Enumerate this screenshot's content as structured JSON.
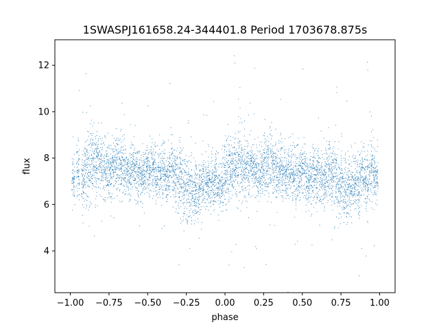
{
  "chart_data": {
    "type": "scatter",
    "title": "1SWASPJ161658.24-344401.8 Period 1703678.875s",
    "xlabel": "phase",
    "ylabel": "flux",
    "xlim": [
      -1.1,
      1.1
    ],
    "ylim": [
      2.2,
      13.1
    ],
    "xticks": [
      -1.0,
      -0.75,
      -0.5,
      -0.25,
      0.0,
      0.25,
      0.5,
      0.75,
      1.0
    ],
    "xtick_labels": [
      "−1.00",
      "−0.75",
      "−0.50",
      "−0.25",
      "0.00",
      "0.25",
      "0.50",
      "0.75",
      "1.00"
    ],
    "yticks": [
      4,
      6,
      8,
      10,
      12
    ],
    "ytick_labels": [
      "4",
      "6",
      "8",
      "10",
      "12"
    ],
    "grid": false,
    "legend": "none",
    "marker_color": "#1f77b4",
    "series": [
      {
        "x": [
          -0.98,
          -0.95,
          -0.92,
          -0.9,
          -0.88,
          -0.86,
          -0.84,
          -0.82,
          -0.8,
          -0.78,
          -0.76,
          -0.74,
          -0.72,
          -0.7,
          -0.68,
          -0.66,
          -0.64,
          -0.62,
          -0.6,
          -0.58,
          -0.56,
          -0.54,
          -0.52,
          -0.5,
          -0.48,
          -0.46,
          -0.44,
          -0.42,
          -0.4,
          -0.38,
          -0.36,
          -0.34,
          -0.32,
          -0.3,
          -0.28,
          -0.26,
          -0.24,
          -0.22,
          -0.2,
          -0.18,
          -0.16,
          -0.14,
          -0.12,
          -0.1,
          -0.08,
          -0.06,
          -0.04,
          -0.02,
          0.0,
          0.02,
          0.04,
          0.06,
          0.08,
          0.1,
          0.12,
          0.14,
          0.16,
          0.18,
          0.2,
          0.22,
          0.24,
          0.26,
          0.28,
          0.3,
          0.32,
          0.34,
          0.36,
          0.38,
          0.4,
          0.42,
          0.44,
          0.46,
          0.48,
          0.5,
          0.52,
          0.54,
          0.56,
          0.58,
          0.6,
          0.62,
          0.64,
          0.66,
          0.68,
          0.7,
          0.72,
          0.74,
          0.76,
          0.78,
          0.8,
          0.82,
          0.84,
          0.86,
          0.88,
          0.9,
          0.92,
          0.94,
          0.96,
          0.98
        ],
        "y": [
          7.2,
          7.4,
          7.0,
          7.5,
          7.6,
          7.8,
          7.7,
          7.9,
          7.6,
          7.4,
          7.5,
          7.3,
          7.6,
          7.8,
          7.7,
          7.5,
          7.4,
          7.3,
          7.6,
          7.5,
          7.4,
          7.2,
          7.3,
          7.5,
          7.4,
          7.6,
          7.2,
          7.3,
          7.4,
          7.1,
          7.3,
          7.5,
          7.2,
          7.0,
          7.1,
          6.9,
          6.7,
          6.8,
          6.5,
          6.6,
          6.7,
          6.8,
          7.0,
          6.9,
          7.1,
          7.0,
          6.8,
          6.9,
          7.3,
          7.5,
          7.4,
          7.6,
          7.7,
          7.8,
          7.6,
          7.5,
          7.7,
          7.6,
          7.4,
          7.3,
          7.5,
          7.7,
          7.6,
          7.8,
          7.7,
          7.5,
          7.6,
          7.4,
          7.3,
          7.5,
          7.2,
          7.1,
          7.3,
          7.4,
          7.2,
          7.0,
          7.1,
          7.3,
          7.4,
          7.2,
          7.1,
          7.3,
          7.5,
          7.2,
          7.0,
          6.8,
          6.9,
          6.7,
          6.6,
          6.9,
          7.0,
          6.8,
          7.1,
          7.2,
          7.0,
          7.3,
          7.4,
          7.2
        ],
        "spread": [
          1.4,
          1.5,
          1.6,
          1.7,
          2.0,
          1.9,
          1.6,
          1.7,
          1.8,
          1.6,
          1.5,
          1.4,
          1.6,
          1.8,
          1.7,
          1.6,
          1.5,
          1.4,
          1.5,
          1.5,
          1.4,
          1.3,
          1.4,
          1.5,
          1.5,
          1.6,
          1.4,
          1.3,
          1.3,
          1.4,
          1.5,
          1.6,
          1.7,
          1.9,
          1.8,
          1.9,
          2.0,
          1.8,
          1.7,
          1.6,
          1.5,
          1.6,
          1.4,
          1.5,
          1.6,
          1.5,
          1.4,
          1.5,
          1.8,
          1.7,
          1.6,
          1.5,
          1.7,
          1.8,
          1.9,
          1.7,
          1.6,
          1.5,
          1.6,
          1.5,
          1.4,
          1.6,
          1.8,
          1.7,
          1.6,
          1.5,
          1.6,
          1.5,
          1.4,
          1.5,
          1.4,
          1.5,
          1.6,
          1.7,
          1.5,
          1.4,
          1.5,
          1.5,
          1.6,
          1.4,
          1.5,
          1.6,
          1.8,
          1.9,
          2.0,
          2.1,
          1.9,
          1.8,
          1.7,
          1.6,
          1.5,
          1.6,
          1.4,
          1.5,
          1.6,
          1.5,
          1.4,
          1.5
        ]
      }
    ]
  }
}
